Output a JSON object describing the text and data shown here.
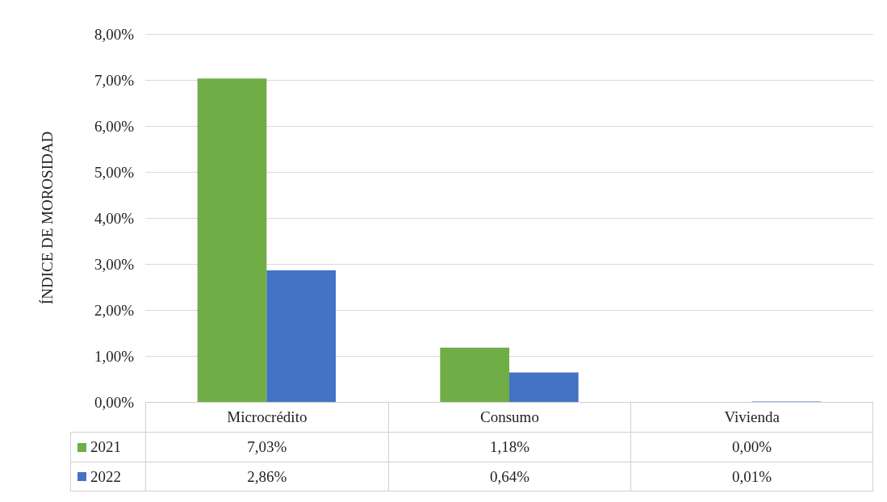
{
  "chart_data": {
    "type": "bar",
    "ylabel": "ÍNDICE DE MOROSIDAD",
    "categories": [
      "Microcrédito",
      "Consumo",
      "Vivienda"
    ],
    "series": [
      {
        "name": "2021",
        "color": "#70ad47",
        "values": [
          7.03,
          1.18,
          0.0
        ],
        "value_labels": [
          "7,03%",
          "1,18%",
          "0,00%"
        ]
      },
      {
        "name": "2022",
        "color": "#4472c4",
        "values": [
          2.86,
          0.64,
          0.01
        ],
        "value_labels": [
          "2,86%",
          "0,64%",
          "0,01%"
        ]
      }
    ],
    "ylim": [
      0,
      8
    ],
    "yticks": [
      {
        "value": 0,
        "label": "0,00%"
      },
      {
        "value": 1,
        "label": "1,00%"
      },
      {
        "value": 2,
        "label": "2,00%"
      },
      {
        "value": 3,
        "label": "3,00%"
      },
      {
        "value": 4,
        "label": "4,00%"
      },
      {
        "value": 5,
        "label": "5,00%"
      },
      {
        "value": 6,
        "label": "6,00%"
      },
      {
        "value": 7,
        "label": "7,00%"
      },
      {
        "value": 8,
        "label": "8,00%"
      }
    ],
    "grid": "y",
    "legend": "bottom"
  }
}
